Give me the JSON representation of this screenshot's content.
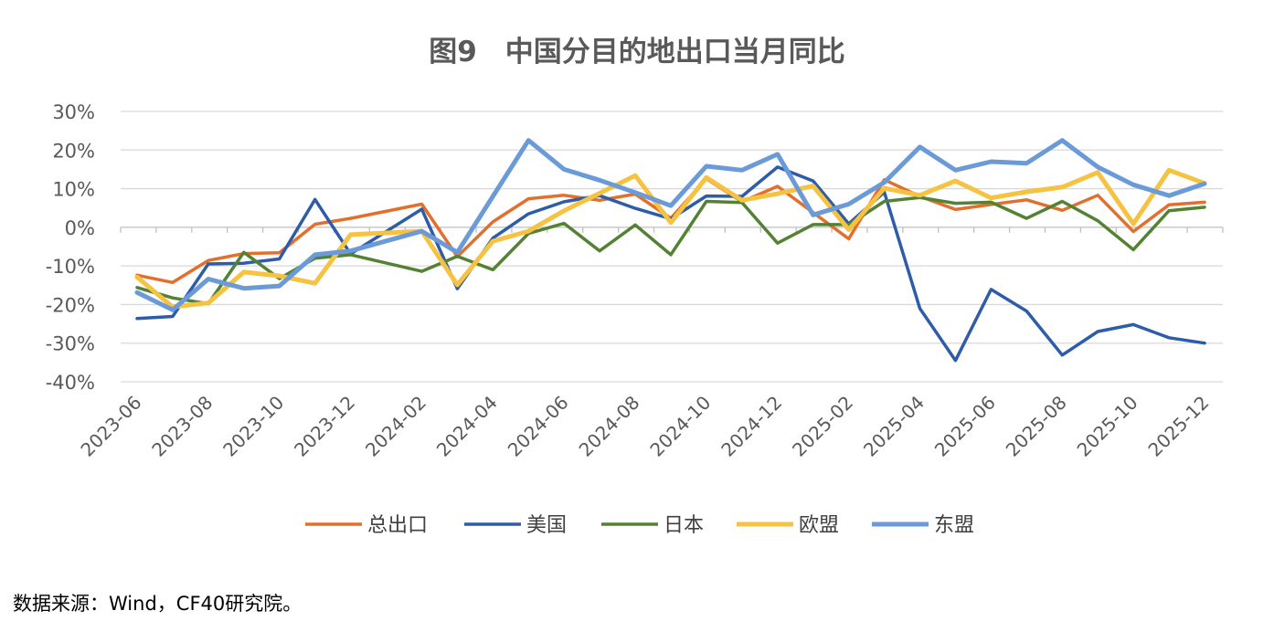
{
  "chart_data": {
    "type": "line",
    "title": "图9　中国分目的地出口当月同比",
    "categories": [
      "2023-06",
      "2023-07",
      "2023-08",
      "2023-09",
      "2023-10",
      "2023-11",
      "2023-12",
      "2024-01",
      "2024-02",
      "2024-03",
      "2024-04",
      "2024-05",
      "2024-06",
      "2024-07",
      "2024-08",
      "2024-09",
      "2024-10",
      "2024-11",
      "2024-12",
      "2025-01",
      "2025-02",
      "2025-03",
      "2025-04",
      "2025-05",
      "2025-06",
      "2025-07",
      "2025-08",
      "2025-09",
      "2025-10",
      "2025-11",
      "2025-12"
    ],
    "tick_labels": [
      "2023-06",
      "2023-08",
      "2023-10",
      "2023-12",
      "2024-02",
      "2024-04",
      "2024-06",
      "2024-08",
      "2024-10",
      "2024-12",
      "2025-02",
      "2025-04",
      "2025-06",
      "2025-08",
      "2025-10",
      "2025-12"
    ],
    "y_ticks": [
      "30%",
      "20%",
      "10%",
      "0%",
      "-10%",
      "-20%",
      "-30%",
      "-40%"
    ],
    "ylim": [
      -40,
      30
    ],
    "series": [
      {
        "name": "总出口",
        "color": "#E36F2C",
        "width": 3.5,
        "values": [
          -12.4,
          -14.3,
          -8.6,
          -6.8,
          -6.6,
          0.8,
          2.3,
          null,
          6.0,
          -7.6,
          1.4,
          7.4,
          8.3,
          7.0,
          8.6,
          2.3,
          12.6,
          6.6,
          10.6,
          null,
          -3.0,
          12.3,
          8.0,
          4.6,
          5.9,
          7.1,
          4.4,
          8.3,
          -1.1,
          5.8,
          6.5
        ]
      },
      {
        "name": "美国",
        "color": "#2E5CA8",
        "width": 3.5,
        "values": [
          -23.6,
          -23.1,
          -9.5,
          -9.3,
          -8.2,
          7.2,
          -6.9,
          null,
          4.7,
          -15.9,
          -2.8,
          3.5,
          6.6,
          8.2,
          4.9,
          2.2,
          8.1,
          8.0,
          15.6,
          12.0,
          0.9,
          9.1,
          -21.0,
          -34.5,
          -16.1,
          -21.7,
          -33.1,
          -27.0,
          -25.2,
          -28.6,
          -30.0
        ]
      },
      {
        "name": "日本",
        "color": "#548235",
        "width": 3.5,
        "values": [
          -15.6,
          -18.3,
          -19.8,
          -6.5,
          -13.3,
          -8.0,
          -7.1,
          null,
          -11.4,
          -7.5,
          -11.0,
          -1.6,
          1.0,
          -6.1,
          0.6,
          -7.1,
          6.7,
          6.4,
          -4.1,
          0.7,
          0.7,
          6.7,
          7.7,
          6.2,
          6.5,
          2.3,
          6.7,
          1.7,
          -5.8,
          4.3,
          5.2
        ]
      },
      {
        "name": "欧盟",
        "color": "#F5C242",
        "width": 5,
        "values": [
          -12.9,
          -20.6,
          -19.6,
          -11.6,
          -12.6,
          -14.5,
          -1.9,
          null,
          -1.0,
          -14.9,
          -3.6,
          -1.0,
          4.3,
          8.8,
          13.4,
          1.2,
          12.9,
          7.0,
          8.7,
          10.7,
          -0.6,
          10.1,
          8.3,
          12.0,
          7.6,
          9.2,
          10.4,
          14.2,
          0.9,
          14.8,
          11.4
        ]
      },
      {
        "name": "东盟",
        "color": "#6A9AD8",
        "width": 5,
        "values": [
          -16.9,
          -21.4,
          -13.4,
          -15.8,
          -15.2,
          -7.1,
          -6.1,
          null,
          -1.0,
          -6.5,
          8.0,
          22.5,
          15.0,
          12.2,
          9.0,
          5.6,
          15.8,
          14.8,
          18.9,
          3.2,
          6.0,
          11.6,
          20.8,
          14.8,
          17.0,
          16.6,
          22.5,
          15.6,
          11.0,
          8.2,
          11.3
        ]
      }
    ],
    "legend_position": "bottom",
    "grid": true,
    "source": "数据来源：Wind，CF40研究院。"
  }
}
